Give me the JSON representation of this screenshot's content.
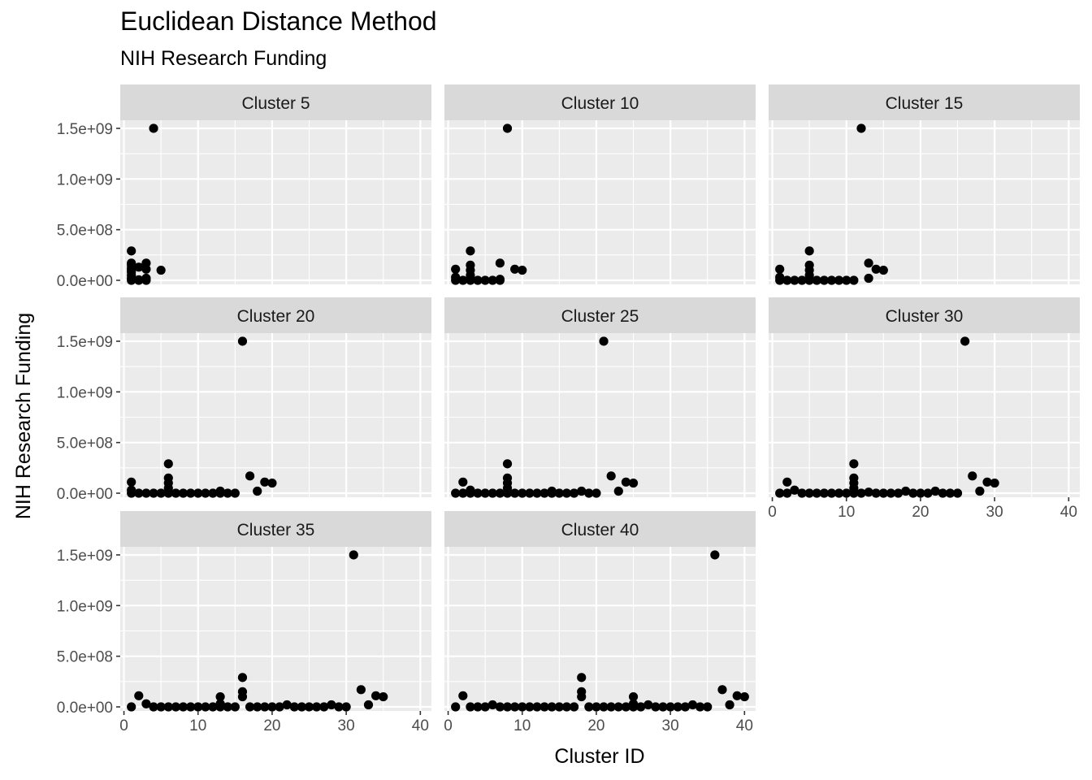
{
  "chart_data": {
    "type": "scatter",
    "title": "Euclidean Distance Method",
    "subtitle": "NIH Research Funding",
    "xlabel": "Cluster ID",
    "ylabel": "NIH Research Funding",
    "xlim": [
      -0.5,
      41.5
    ],
    "ylim": [
      -40000000,
      1580000000
    ],
    "x_ticks": [
      0,
      10,
      20,
      30,
      40
    ],
    "y_ticks": [
      0,
      500000000,
      1000000000,
      1500000000
    ],
    "y_tick_labels": [
      "0.0e+00",
      "5.0e+08",
      "1.0e+09",
      "1.5e+09"
    ],
    "facet_layout": "wrap, 3 columns",
    "colors": {
      "panel_bg": "#ebebeb",
      "strip_bg": "#d9d9d9",
      "grid": "#ffffff",
      "point": "#000000",
      "text": "#4d4d4d"
    },
    "panels": [
      {
        "label": "Cluster 5",
        "points": [
          [
            1,
            290000000
          ],
          [
            1,
            170000000
          ],
          [
            1,
            150000000
          ],
          [
            1,
            120000000
          ],
          [
            1,
            100000000
          ],
          [
            1,
            80000000
          ],
          [
            1,
            50000000
          ],
          [
            1,
            20000000
          ],
          [
            1,
            0
          ],
          [
            2,
            130000000
          ],
          [
            2,
            0
          ],
          [
            2,
            5000000
          ],
          [
            3,
            170000000
          ],
          [
            3,
            110000000
          ],
          [
            3,
            20000000
          ],
          [
            3,
            0
          ],
          [
            4,
            1500000000
          ],
          [
            5,
            100000000
          ]
        ]
      },
      {
        "label": "Cluster 10",
        "points": [
          [
            1,
            110000000
          ],
          [
            1,
            30000000
          ],
          [
            1,
            0
          ],
          [
            2,
            0
          ],
          [
            3,
            290000000
          ],
          [
            3,
            150000000
          ],
          [
            3,
            100000000
          ],
          [
            3,
            50000000
          ],
          [
            3,
            10000000
          ],
          [
            3,
            0
          ],
          [
            4,
            0
          ],
          [
            5,
            0
          ],
          [
            6,
            0
          ],
          [
            7,
            170000000
          ],
          [
            7,
            10000000
          ],
          [
            7,
            0
          ],
          [
            8,
            1500000000
          ],
          [
            9,
            110000000
          ],
          [
            10,
            100000000
          ]
        ]
      },
      {
        "label": "Cluster 15",
        "points": [
          [
            1,
            110000000
          ],
          [
            1,
            30000000
          ],
          [
            1,
            0
          ],
          [
            2,
            0
          ],
          [
            3,
            0
          ],
          [
            4,
            0
          ],
          [
            5,
            290000000
          ],
          [
            5,
            150000000
          ],
          [
            5,
            100000000
          ],
          [
            5,
            50000000
          ],
          [
            5,
            0
          ],
          [
            6,
            0
          ],
          [
            7,
            0
          ],
          [
            8,
            0
          ],
          [
            9,
            0
          ],
          [
            10,
            0
          ],
          [
            11,
            0
          ],
          [
            12,
            1500000000
          ],
          [
            13,
            170000000
          ],
          [
            13,
            20000000
          ],
          [
            14,
            110000000
          ],
          [
            15,
            100000000
          ]
        ]
      },
      {
        "label": "Cluster 20",
        "points": [
          [
            1,
            110000000
          ],
          [
            1,
            30000000
          ],
          [
            1,
            0
          ],
          [
            2,
            0
          ],
          [
            3,
            0
          ],
          [
            4,
            0
          ],
          [
            5,
            0
          ],
          [
            6,
            290000000
          ],
          [
            6,
            150000000
          ],
          [
            6,
            100000000
          ],
          [
            6,
            50000000
          ],
          [
            6,
            0
          ],
          [
            7,
            0
          ],
          [
            8,
            0
          ],
          [
            9,
            0
          ],
          [
            10,
            0
          ],
          [
            11,
            0
          ],
          [
            12,
            0
          ],
          [
            13,
            20000000
          ],
          [
            13,
            0
          ],
          [
            14,
            0
          ],
          [
            15,
            0
          ],
          [
            16,
            1500000000
          ],
          [
            17,
            170000000
          ],
          [
            18,
            20000000
          ],
          [
            19,
            110000000
          ],
          [
            20,
            100000000
          ]
        ]
      },
      {
        "label": "Cluster 25",
        "points": [
          [
            1,
            0
          ],
          [
            2,
            110000000
          ],
          [
            2,
            0
          ],
          [
            3,
            30000000
          ],
          [
            3,
            0
          ],
          [
            4,
            0
          ],
          [
            5,
            0
          ],
          [
            6,
            0
          ],
          [
            7,
            0
          ],
          [
            8,
            290000000
          ],
          [
            8,
            150000000
          ],
          [
            8,
            100000000
          ],
          [
            8,
            50000000
          ],
          [
            8,
            0
          ],
          [
            9,
            0
          ],
          [
            10,
            0
          ],
          [
            11,
            0
          ],
          [
            12,
            0
          ],
          [
            13,
            0
          ],
          [
            14,
            20000000
          ],
          [
            14,
            0
          ],
          [
            15,
            0
          ],
          [
            16,
            0
          ],
          [
            17,
            0
          ],
          [
            18,
            20000000
          ],
          [
            19,
            0
          ],
          [
            20,
            0
          ],
          [
            21,
            1500000000
          ],
          [
            22,
            170000000
          ],
          [
            23,
            20000000
          ],
          [
            24,
            110000000
          ],
          [
            25,
            100000000
          ]
        ]
      },
      {
        "label": "Cluster 30",
        "points": [
          [
            1,
            0
          ],
          [
            2,
            110000000
          ],
          [
            2,
            0
          ],
          [
            3,
            30000000
          ],
          [
            4,
            0
          ],
          [
            5,
            0
          ],
          [
            6,
            0
          ],
          [
            7,
            0
          ],
          [
            8,
            0
          ],
          [
            9,
            0
          ],
          [
            10,
            0
          ],
          [
            11,
            290000000
          ],
          [
            11,
            150000000
          ],
          [
            11,
            100000000
          ],
          [
            11,
            50000000
          ],
          [
            11,
            0
          ],
          [
            12,
            0
          ],
          [
            13,
            10000000
          ],
          [
            14,
            0
          ],
          [
            15,
            0
          ],
          [
            16,
            0
          ],
          [
            17,
            0
          ],
          [
            18,
            20000000
          ],
          [
            19,
            0
          ],
          [
            20,
            0
          ],
          [
            21,
            0
          ],
          [
            22,
            20000000
          ],
          [
            23,
            0
          ],
          [
            24,
            0
          ],
          [
            25,
            0
          ],
          [
            26,
            1500000000
          ],
          [
            27,
            170000000
          ],
          [
            28,
            20000000
          ],
          [
            29,
            110000000
          ],
          [
            30,
            100000000
          ]
        ]
      },
      {
        "label": "Cluster 35",
        "points": [
          [
            1,
            0
          ],
          [
            2,
            110000000
          ],
          [
            3,
            30000000
          ],
          [
            4,
            0
          ],
          [
            5,
            0
          ],
          [
            6,
            0
          ],
          [
            7,
            0
          ],
          [
            8,
            0
          ],
          [
            9,
            0
          ],
          [
            10,
            0
          ],
          [
            11,
            0
          ],
          [
            12,
            0
          ],
          [
            13,
            100000000
          ],
          [
            13,
            30000000
          ],
          [
            13,
            0
          ],
          [
            14,
            0
          ],
          [
            15,
            0
          ],
          [
            16,
            290000000
          ],
          [
            16,
            150000000
          ],
          [
            16,
            100000000
          ],
          [
            17,
            0
          ],
          [
            18,
            0
          ],
          [
            19,
            0
          ],
          [
            20,
            0
          ],
          [
            21,
            0
          ],
          [
            22,
            20000000
          ],
          [
            23,
            0
          ],
          [
            24,
            0
          ],
          [
            25,
            0
          ],
          [
            26,
            0
          ],
          [
            27,
            0
          ],
          [
            28,
            20000000
          ],
          [
            29,
            0
          ],
          [
            30,
            0
          ],
          [
            31,
            1500000000
          ],
          [
            32,
            170000000
          ],
          [
            33,
            20000000
          ],
          [
            34,
            110000000
          ],
          [
            35,
            100000000
          ]
        ]
      },
      {
        "label": "Cluster 40",
        "points": [
          [
            1,
            0
          ],
          [
            2,
            110000000
          ],
          [
            3,
            0
          ],
          [
            4,
            0
          ],
          [
            5,
            0
          ],
          [
            6,
            20000000
          ],
          [
            7,
            0
          ],
          [
            8,
            0
          ],
          [
            9,
            0
          ],
          [
            10,
            0
          ],
          [
            11,
            0
          ],
          [
            12,
            0
          ],
          [
            13,
            0
          ],
          [
            14,
            0
          ],
          [
            15,
            0
          ],
          [
            16,
            0
          ],
          [
            17,
            0
          ],
          [
            18,
            290000000
          ],
          [
            18,
            150000000
          ],
          [
            18,
            100000000
          ],
          [
            19,
            0
          ],
          [
            20,
            0
          ],
          [
            21,
            0
          ],
          [
            22,
            0
          ],
          [
            23,
            0
          ],
          [
            24,
            0
          ],
          [
            25,
            100000000
          ],
          [
            25,
            30000000
          ],
          [
            25,
            0
          ],
          [
            26,
            0
          ],
          [
            27,
            20000000
          ],
          [
            28,
            0
          ],
          [
            29,
            0
          ],
          [
            30,
            0
          ],
          [
            31,
            0
          ],
          [
            32,
            0
          ],
          [
            33,
            20000000
          ],
          [
            34,
            0
          ],
          [
            35,
            0
          ],
          [
            36,
            1500000000
          ],
          [
            37,
            170000000
          ],
          [
            38,
            20000000
          ],
          [
            39,
            110000000
          ],
          [
            40,
            100000000
          ]
        ]
      }
    ]
  }
}
